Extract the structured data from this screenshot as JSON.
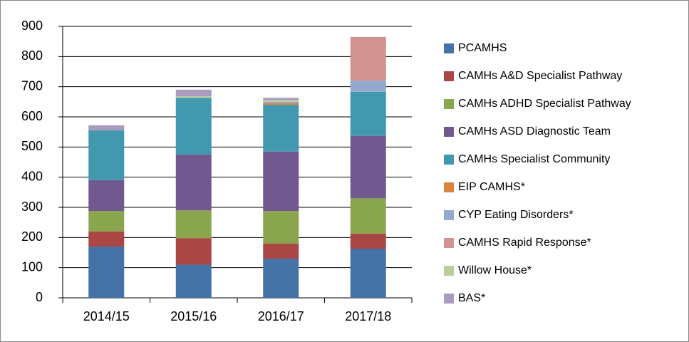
{
  "chart_data": {
    "type": "stacked_bar",
    "categories": [
      "2014/15",
      "2015/16",
      "2016/17",
      "2017/18"
    ],
    "series": [
      {
        "name": "PCAMHS",
        "color": "#4572a7",
        "values": [
          170,
          110,
          130,
          163
        ]
      },
      {
        "name": "CAMHs A&D Specialist Pathway",
        "color": "#aa4643",
        "values": [
          50,
          88,
          50,
          50
        ]
      },
      {
        "name": "CAMHs ADHD Specialist Pathway",
        "color": "#89a54e",
        "values": [
          68,
          92,
          108,
          117
        ]
      },
      {
        "name": "CAMHs ASD Diagnostic Team",
        "color": "#71588f",
        "values": [
          102,
          185,
          197,
          207
        ]
      },
      {
        "name": "CAMHs Specialist Community",
        "color": "#4198af",
        "values": [
          165,
          188,
          155,
          146
        ]
      },
      {
        "name": "EIP CAMHS*",
        "color": "#db843d",
        "values": [
          0,
          0,
          5,
          0
        ]
      },
      {
        "name": "CYP Eating Disorders*",
        "color": "#93a9cf",
        "values": [
          0,
          0,
          5,
          37
        ]
      },
      {
        "name": "CAMHS Rapid Response*",
        "color": "#d19392",
        "values": [
          0,
          0,
          0,
          145
        ]
      },
      {
        "name": "Willow House*",
        "color": "#b9cd96",
        "values": [
          0,
          5,
          5,
          0
        ]
      },
      {
        "name": "BAS*",
        "color": "#a99bbd",
        "values": [
          17,
          22,
          8,
          0
        ]
      }
    ],
    "ylim": [
      0,
      900
    ],
    "yticks": [
      0,
      100,
      200,
      300,
      400,
      500,
      600,
      700,
      800,
      900
    ],
    "grid": true,
    "legend": "right"
  }
}
